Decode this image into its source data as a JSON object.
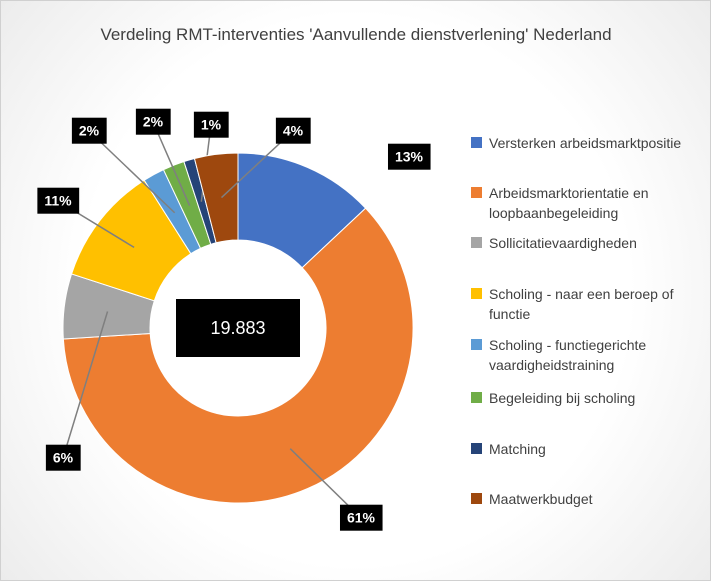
{
  "chart_data": {
    "type": "donut",
    "title": "Verdeling RMT-interventies 'Aanvullende dienstverlening' Nederland",
    "center_label": "19.883",
    "categories": [
      "Versterken arbeidsmarktpositie",
      "Arbeidsmarktorientatie en loopbaanbegeleiding",
      "Sollicitatievaardigheden",
      "Scholing - naar een beroep of functie",
      "Scholing - functiegerichte vaardigheidstraining",
      "Begeleiding bij scholing",
      "Matching",
      "Maatwerkbudget"
    ],
    "values": [
      13,
      61,
      6,
      11,
      2,
      2,
      1,
      4
    ],
    "value_labels": [
      "13%",
      "61%",
      "6%",
      "11%",
      "2%",
      "2%",
      "1%",
      "4%"
    ],
    "colors": [
      "#4472c4",
      "#ed7d31",
      "#a5a5a5",
      "#ffc000",
      "#5b9bd5",
      "#70ad47",
      "#264478",
      "#9e480e"
    ],
    "legend": "right"
  }
}
